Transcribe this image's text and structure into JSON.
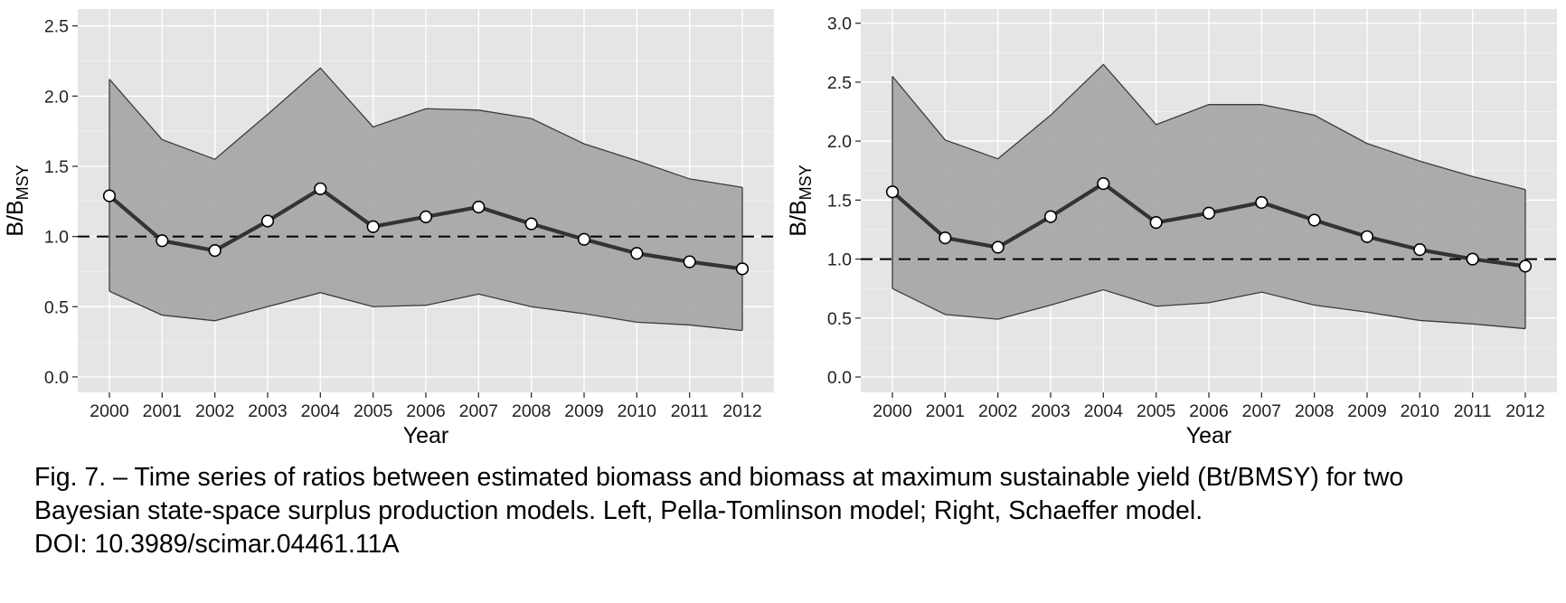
{
  "figure": {
    "caption_lines": [
      "Fig. 7. – Time series of ratios between estimated biomass and biomass at maximum sustainable yield (Bt/BMSY) for two",
      "Bayesian state-space surplus production models. Left, Pella-Tomlinson model; Right, Schaeffer model.",
      "DOI: 10.3989/scimar.04461.11A"
    ]
  },
  "colors": {
    "panel_background": "#e5e5e5",
    "grid_major": "#ffffff",
    "ribbon_fill": "#a6a6a6",
    "ribbon_edge": "#3c3c3c",
    "line": "#333333",
    "point_fill": "#ffffff",
    "point_edge": "#000000",
    "reference_line": "#000000"
  },
  "chart_data": [
    {
      "type": "line",
      "title": "",
      "xlabel": "Year",
      "ylabel_main": "B/B",
      "ylabel_sub": "MSY",
      "x": [
        2000,
        2001,
        2002,
        2003,
        2004,
        2005,
        2006,
        2007,
        2008,
        2009,
        2010,
        2011,
        2012
      ],
      "xlim": [
        1999.4,
        2012.6
      ],
      "ylim": [
        -0.11,
        2.62
      ],
      "yticks": [
        0.0,
        0.5,
        1.0,
        1.5,
        2.0,
        2.5
      ],
      "ytick_labels": [
        "0.0",
        "0.5",
        "1.0",
        "1.5",
        "2.0",
        "2.5"
      ],
      "grid": true,
      "series": [
        {
          "values": [
            1.29,
            0.97,
            0.9,
            1.11,
            1.34,
            1.07,
            1.14,
            1.21,
            1.09,
            0.98,
            0.88,
            0.82,
            0.77
          ]
        }
      ],
      "ribbon": {
        "lower": [
          0.61,
          0.44,
          0.4,
          0.5,
          0.6,
          0.5,
          0.51,
          0.59,
          0.5,
          0.45,
          0.39,
          0.37,
          0.33
        ],
        "upper": [
          2.12,
          1.69,
          1.55,
          1.87,
          2.2,
          1.78,
          1.91,
          1.9,
          1.84,
          1.66,
          1.54,
          1.41,
          1.35
        ]
      },
      "reference_y": 1.0
    },
    {
      "type": "line",
      "title": "",
      "xlabel": "Year",
      "ylabel_main": "B/B",
      "ylabel_sub": "MSY",
      "x": [
        2000,
        2001,
        2002,
        2003,
        2004,
        2005,
        2006,
        2007,
        2008,
        2009,
        2010,
        2011,
        2012
      ],
      "xlim": [
        1999.4,
        2012.6
      ],
      "ylim": [
        -0.13,
        3.12
      ],
      "yticks": [
        0.0,
        0.5,
        1.0,
        1.5,
        2.0,
        2.5,
        3.0
      ],
      "ytick_labels": [
        "0.0",
        "0.5",
        "1.0",
        "1.5",
        "2.0",
        "2.5",
        "3.0"
      ],
      "grid": true,
      "series": [
        {
          "values": [
            1.57,
            1.18,
            1.1,
            1.36,
            1.64,
            1.31,
            1.39,
            1.48,
            1.33,
            1.19,
            1.08,
            1.0,
            0.94
          ]
        }
      ],
      "ribbon": {
        "lower": [
          0.75,
          0.53,
          0.49,
          0.61,
          0.74,
          0.6,
          0.63,
          0.72,
          0.61,
          0.55,
          0.48,
          0.45,
          0.41
        ],
        "upper": [
          2.55,
          2.01,
          1.85,
          2.22,
          2.65,
          2.14,
          2.31,
          2.31,
          2.22,
          1.98,
          1.83,
          1.7,
          1.59
        ]
      },
      "reference_y": 1.0
    }
  ]
}
